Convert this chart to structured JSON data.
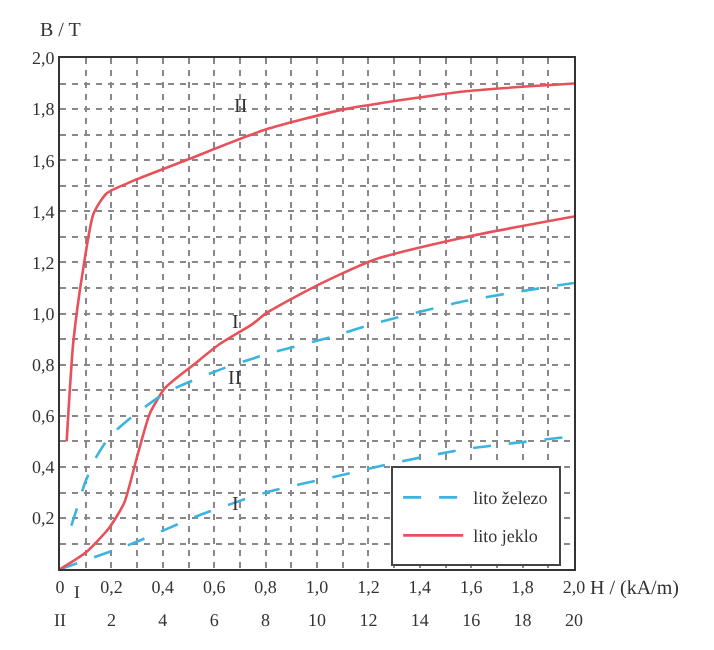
{
  "chart_data": {
    "type": "line",
    "xlabel": "H / (kA/m)",
    "ylabel": "B / T",
    "xlim": [
      0,
      2.0
    ],
    "ylim": [
      0,
      2.0
    ],
    "x2lim": [
      0,
      20
    ],
    "xticks": [
      {
        "value": 0,
        "label": "0"
      },
      {
        "value": 0.1,
        "label": null
      },
      {
        "value": 0.2,
        "label": "0,2"
      },
      {
        "value": 0.3,
        "label": null
      },
      {
        "value": 0.4,
        "label": "0,4"
      },
      {
        "value": 0.5,
        "label": null
      },
      {
        "value": 0.6,
        "label": "0,6"
      },
      {
        "value": 0.7,
        "label": null
      },
      {
        "value": 0.8,
        "label": "0,8"
      },
      {
        "value": 0.9,
        "label": null
      },
      {
        "value": 1.0,
        "label": "1,0"
      },
      {
        "value": 1.1,
        "label": null
      },
      {
        "value": 1.2,
        "label": "1,2"
      },
      {
        "value": 1.3,
        "label": null
      },
      {
        "value": 1.4,
        "label": "1,4"
      },
      {
        "value": 1.5,
        "label": null
      },
      {
        "value": 1.6,
        "label": "1,6"
      },
      {
        "value": 1.7,
        "label": null
      },
      {
        "value": 1.8,
        "label": "1,8"
      },
      {
        "value": 1.9,
        "label": null
      },
      {
        "value": 2.0,
        "label": "2,0"
      }
    ],
    "x2ticks": [
      {
        "value": 0,
        "label": "II"
      },
      2,
      4,
      6,
      8,
      10,
      12,
      14,
      16,
      18,
      20
    ],
    "yticks": [
      {
        "value": 0.1,
        "label": null
      },
      {
        "value": 0.2,
        "label": "0,2"
      },
      {
        "value": 0.3,
        "label": null
      },
      {
        "value": 0.4,
        "label": "0,4"
      },
      {
        "value": 0.5,
        "label": null
      },
      {
        "value": 0.6,
        "label": "0,6"
      },
      {
        "value": 0.7,
        "label": null
      },
      {
        "value": 0.8,
        "label": "0,8"
      },
      {
        "value": 0.9,
        "label": null
      },
      {
        "value": 1.0,
        "label": "1,0"
      },
      {
        "value": 1.1,
        "label": null
      },
      {
        "value": 1.2,
        "label": "1,2"
      },
      {
        "value": 1.3,
        "label": null
      },
      {
        "value": 1.4,
        "label": "1,4"
      },
      {
        "value": 1.5,
        "label": null
      },
      {
        "value": 1.6,
        "label": "1,6"
      },
      {
        "value": 1.7,
        "label": null
      },
      {
        "value": 1.8,
        "label": "1,8"
      },
      {
        "value": 1.9,
        "label": null
      },
      {
        "value": 2.0,
        "label": "2,0"
      }
    ],
    "grid": true,
    "legend": "bottom right",
    "marker": "none",
    "series": [
      {
        "name": "lito železo",
        "color": "#3cb4e0",
        "line_style": "dashed",
        "x": [
          0,
          0.28,
          0.54,
          0.8,
          1.06,
          1.32,
          1.58,
          2.0
        ],
        "values": [
          0,
          0.1,
          0.21,
          0.3,
          0.36,
          0.42,
          0.47,
          0.52
        ]
      },
      {
        "color": "#3cb4e0",
        "line_style": "dashed",
        "axis": "x2",
        "x": [
          0.44,
          0.73,
          0.98,
          1.42,
          1.94,
          2.85,
          4.1,
          6.2,
          8.0,
          10.6,
          12.2,
          15.8,
          20
        ],
        "values": [
          0.17,
          0.26,
          0.34,
          0.44,
          0.52,
          0.6,
          0.69,
          0.78,
          0.84,
          0.91,
          0.96,
          1.05,
          1.12
        ]
      },
      {
        "name": "lito jeklo",
        "color": "#e8515a",
        "line_style": "solid",
        "x": [
          0,
          0.1,
          0.19,
          0.25,
          0.3,
          0.35,
          0.41,
          0.52,
          0.62,
          0.75,
          0.8,
          0.98,
          1.22,
          1.58,
          2.0
        ],
        "values": [
          0,
          0.065,
          0.16,
          0.26,
          0.44,
          0.61,
          0.71,
          0.8,
          0.88,
          0.96,
          1.0,
          1.1,
          1.21,
          1.3,
          1.38
        ]
      },
      {
        "color": "#e8515a",
        "line_style": "solid",
        "axis": "x2",
        "x": [
          0.26,
          0.52,
          0.91,
          1.3,
          1.81,
          2.86,
          4.9,
          8.0,
          11.1,
          15.8,
          20
        ],
        "values": [
          0.5,
          0.89,
          1.18,
          1.39,
          1.47,
          1.52,
          1.6,
          1.72,
          1.8,
          1.87,
          1.9
        ]
      }
    ],
    "annotations": [
      "I",
      "II",
      "I",
      "II",
      "I"
    ]
  }
}
